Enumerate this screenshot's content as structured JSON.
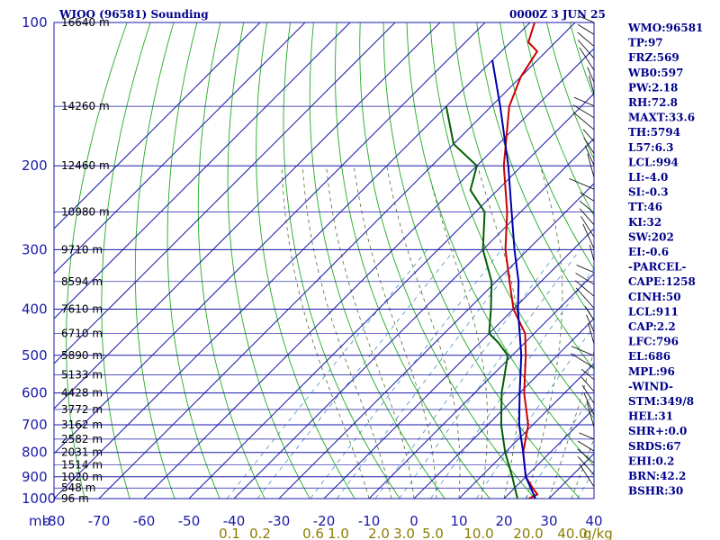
{
  "header": {
    "station": "WIOO (96581) Sounding",
    "time": "0000Z  3 JUN 25"
  },
  "axis": {
    "pressure_unit": "mb",
    "mixing_unit": "g/kg"
  },
  "chart_data": {
    "type": "line",
    "title": "WIOO (96581) Sounding",
    "subtitle": "0000Z  3 JUN 25",
    "pressure_levels": [
      100,
      200,
      300,
      400,
      500,
      600,
      700,
      800,
      900,
      1000
    ],
    "temperature_ticks": [
      -80,
      -70,
      -60,
      -50,
      -40,
      -30,
      -20,
      -10,
      0,
      10,
      20,
      30,
      40
    ],
    "mixing_ratio_labels": [
      "0.1",
      "0.2",
      "0.6",
      "1.0",
      "2.0",
      "3.0",
      "5.0",
      "10.0",
      "20.0",
      "40.0"
    ],
    "height_labels": [
      {
        "p": 100,
        "label": "16640 m"
      },
      {
        "p": 150,
        "label": "14260 m"
      },
      {
        "p": 200,
        "label": "12460 m"
      },
      {
        "p": 250,
        "label": "10980 m"
      },
      {
        "p": 300,
        "label": "9710 m"
      },
      {
        "p": 350,
        "label": "8594 m"
      },
      {
        "p": 400,
        "label": "7610 m"
      },
      {
        "p": 450,
        "label": "6710 m"
      },
      {
        "p": 500,
        "label": "5890 m"
      },
      {
        "p": 550,
        "label": "5133 m"
      },
      {
        "p": 600,
        "label": "4428 m"
      },
      {
        "p": 650,
        "label": "3772 m"
      },
      {
        "p": 700,
        "label": "3162 m"
      },
      {
        "p": 750,
        "label": "2582 m"
      },
      {
        "p": 800,
        "label": "2031 m"
      },
      {
        "p": 850,
        "label": "1514 m"
      },
      {
        "p": 900,
        "label": "1020 m"
      },
      {
        "p": 950,
        "label": "548 m"
      },
      {
        "p": 1000,
        "label": "96 m"
      }
    ],
    "ylim": [
      100,
      1000
    ],
    "xlim": [
      -80,
      40
    ],
    "y_scale": "log",
    "series": [
      {
        "color": "#cc0000",
        "points": [
          {
            "p": 100,
            "t": -79
          },
          {
            "p": 110,
            "t": -76
          },
          {
            "p": 115,
            "t": -72
          },
          {
            "p": 130,
            "t": -70
          },
          {
            "p": 150,
            "t": -66
          },
          {
            "p": 200,
            "t": -54
          },
          {
            "p": 250,
            "t": -43
          },
          {
            "p": 300,
            "t": -35
          },
          {
            "p": 350,
            "t": -27
          },
          {
            "p": 400,
            "t": -20
          },
          {
            "p": 450,
            "t": -12
          },
          {
            "p": 500,
            "t": -7
          },
          {
            "p": 600,
            "t": 1
          },
          {
            "p": 700,
            "t": 9
          },
          {
            "p": 800,
            "t": 14
          },
          {
            "p": 900,
            "t": 20
          },
          {
            "p": 950,
            "t": 24
          },
          {
            "p": 980,
            "t": 26.5
          },
          {
            "p": 1000,
            "t": 25.5
          }
        ]
      },
      {
        "color": "#006000",
        "points": [
          {
            "p": 150,
            "t": -80
          },
          {
            "p": 180,
            "t": -70
          },
          {
            "p": 200,
            "t": -60
          },
          {
            "p": 225,
            "t": -56
          },
          {
            "p": 250,
            "t": -48
          },
          {
            "p": 300,
            "t": -40
          },
          {
            "p": 350,
            "t": -31
          },
          {
            "p": 400,
            "t": -25
          },
          {
            "p": 450,
            "t": -20
          },
          {
            "p": 470,
            "t": -16
          },
          {
            "p": 500,
            "t": -11
          },
          {
            "p": 600,
            "t": -4
          },
          {
            "p": 700,
            "t": 3
          },
          {
            "p": 800,
            "t": 10
          },
          {
            "p": 900,
            "t": 17
          },
          {
            "p": 1000,
            "t": 23
          }
        ]
      },
      {
        "color": "#0000b0",
        "points": [
          {
            "p": 120,
            "t": -80
          },
          {
            "p": 150,
            "t": -68
          },
          {
            "p": 200,
            "t": -53
          },
          {
            "p": 250,
            "t": -42
          },
          {
            "p": 300,
            "t": -33
          },
          {
            "p": 350,
            "t": -25
          },
          {
            "p": 400,
            "t": -19
          },
          {
            "p": 500,
            "t": -8
          },
          {
            "p": 600,
            "t": 0
          },
          {
            "p": 700,
            "t": 7
          },
          {
            "p": 800,
            "t": 14
          },
          {
            "p": 900,
            "t": 20
          },
          {
            "p": 1000,
            "t": 27
          }
        ]
      }
    ],
    "grid": true
  },
  "indices": [
    "WMO:96581",
    "TP:97",
    "FRZ:569",
    "WB0:597",
    "PW:2.18",
    "RH:72.8",
    "MAXT:33.6",
    "TH:5794",
    "L57:6.3",
    "LCL:994",
    "LI:-4.0",
    "SI:-0.3",
    "TT:46",
    "KI:32",
    "SW:202",
    "EI:-0.6",
    "-PARCEL-",
    "CAPE:1258",
    "CINH:50",
    "LCL:911",
    "CAP:2.2",
    "LFC:796",
    "EL:686",
    "MPL:96",
    "-WIND-",
    "STM:349/8",
    "HEL:31",
    "SHR+:0.0",
    "SRDS:67",
    "EHI:0.2",
    "BRN:42.2",
    "BSHR:30"
  ],
  "colors": {
    "isobar": "#1a1aa8",
    "isotherm": "#1a1aa8",
    "dry_adiabat": "#22aa22",
    "moist_adiabat": "#556b2f",
    "mixing_ratio": "#4a90c8",
    "temperature": "#cc0000",
    "dewpoint": "#006000",
    "parcel": "#0000b0"
  }
}
